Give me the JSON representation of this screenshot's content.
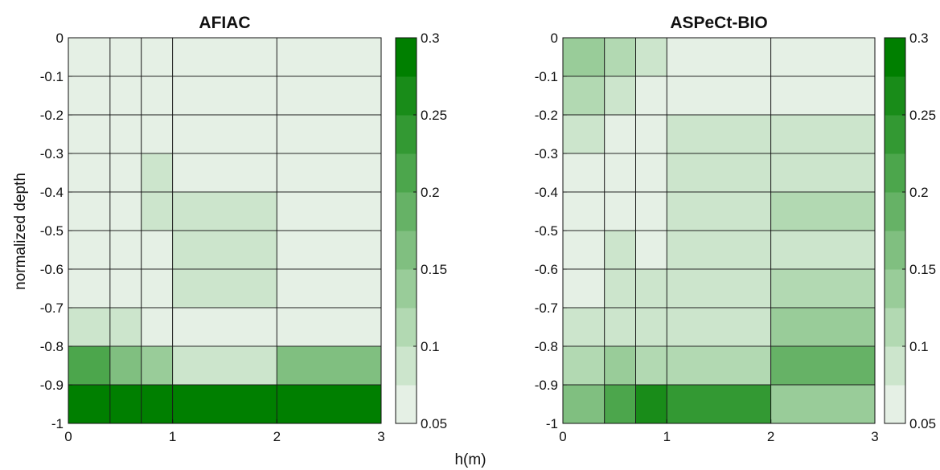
{
  "figure": {
    "xlabel": "h(m)",
    "ylabel": "normalized depth"
  },
  "chart_data": [
    {
      "type": "heatmap",
      "title": "AFIAC",
      "x_edges": [
        0,
        0.4,
        0.7,
        1,
        2,
        3
      ],
      "y_edges": [
        0,
        -0.1,
        -0.2,
        -0.3,
        -0.4,
        -0.5,
        -0.6,
        -0.7,
        -0.8,
        -0.9,
        -1
      ],
      "xlim": [
        0,
        3
      ],
      "ylim": [
        -1,
        0
      ],
      "x_ticks": [
        "0",
        "1",
        "2",
        "3"
      ],
      "y_ticks": [
        "0",
        "-0.1",
        "-0.2",
        "-0.3",
        "-0.4",
        "-0.5",
        "-0.6",
        "-0.7",
        "-0.8",
        "-0.9",
        "-1"
      ],
      "values": [
        [
          0.07,
          0.07,
          0.07,
          0.07,
          0.07
        ],
        [
          0.07,
          0.07,
          0.07,
          0.07,
          0.07
        ],
        [
          0.07,
          0.07,
          0.07,
          0.07,
          0.07
        ],
        [
          0.07,
          0.07,
          0.09,
          0.07,
          0.07
        ],
        [
          0.07,
          0.07,
          0.09,
          0.09,
          0.07
        ],
        [
          0.07,
          0.07,
          0.07,
          0.09,
          0.07
        ],
        [
          0.07,
          0.07,
          0.07,
          0.09,
          0.07
        ],
        [
          0.09,
          0.09,
          0.07,
          0.07,
          0.07
        ],
        [
          0.21,
          0.16,
          0.14,
          0.09,
          0.16
        ],
        [
          0.29,
          0.29,
          0.29,
          0.29,
          0.29
        ]
      ],
      "colorbar": {
        "range": [
          0.05,
          0.3
        ],
        "ticks": [
          "0.3",
          "0.25",
          "0.2",
          "0.15",
          "0.1",
          "0.05"
        ]
      }
    },
    {
      "type": "heatmap",
      "title": "ASPeCt-BIO",
      "x_edges": [
        0,
        0.4,
        0.7,
        1,
        2,
        3
      ],
      "y_edges": [
        0,
        -0.1,
        -0.2,
        -0.3,
        -0.4,
        -0.5,
        -0.6,
        -0.7,
        -0.8,
        -0.9,
        -1
      ],
      "xlim": [
        0,
        3
      ],
      "ylim": [
        -1,
        0
      ],
      "x_ticks": [
        "0",
        "1",
        "2",
        "3"
      ],
      "y_ticks": [
        "0",
        "-0.1",
        "-0.2",
        "-0.3",
        "-0.4",
        "-0.5",
        "-0.6",
        "-0.7",
        "-0.8",
        "-0.9",
        "-1"
      ],
      "values": [
        [
          0.14,
          0.11,
          0.09,
          0.07,
          0.07
        ],
        [
          0.11,
          0.09,
          0.07,
          0.07,
          0.07
        ],
        [
          0.09,
          0.07,
          0.07,
          0.09,
          0.09
        ],
        [
          0.07,
          0.07,
          0.07,
          0.09,
          0.09
        ],
        [
          0.07,
          0.07,
          0.07,
          0.09,
          0.11
        ],
        [
          0.07,
          0.09,
          0.07,
          0.09,
          0.09
        ],
        [
          0.07,
          0.09,
          0.09,
          0.09,
          0.11
        ],
        [
          0.09,
          0.09,
          0.09,
          0.09,
          0.14
        ],
        [
          0.11,
          0.14,
          0.11,
          0.11,
          0.19
        ],
        [
          0.16,
          0.21,
          0.26,
          0.24,
          0.14
        ]
      ],
      "colorbar": {
        "range": [
          0.05,
          0.3
        ],
        "ticks": [
          "0.3",
          "0.25",
          "0.2",
          "0.15",
          "0.1",
          "0.05"
        ]
      }
    }
  ],
  "colormap": [
    "#e5f0e5",
    "#cce5cc",
    "#b2d9b2",
    "#99cc99",
    "#80bf80",
    "#66b266",
    "#4ca64c",
    "#339933",
    "#198c19",
    "#007f00"
  ]
}
